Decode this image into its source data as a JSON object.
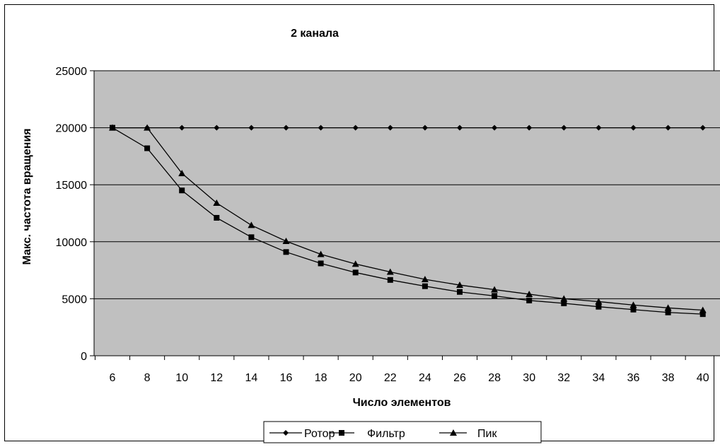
{
  "chart_data": {
    "type": "line",
    "title": "2 канала",
    "xlabel": "Число элементов",
    "ylabel": "Макс. частота вращения",
    "categories": [
      "6",
      "8",
      "10",
      "12",
      "14",
      "16",
      "18",
      "20",
      "22",
      "24",
      "26",
      "28",
      "30",
      "32",
      "34",
      "36",
      "38",
      "40"
    ],
    "ylim": [
      0,
      25000
    ],
    "yticks": [
      "0",
      "5000",
      "10000",
      "15000",
      "20000",
      "25000"
    ],
    "grid": true,
    "legend_position": "bottom",
    "plot_background": "#c0c0c0",
    "series": [
      {
        "name": "Ротор",
        "marker": "diamond",
        "color": "#000000",
        "values": [
          20000,
          20000,
          20000,
          20000,
          20000,
          20000,
          20000,
          20000,
          20000,
          20000,
          20000,
          20000,
          20000,
          20000,
          20000,
          20000,
          20000,
          20000
        ]
      },
      {
        "name": "Фильтр",
        "marker": "square",
        "color": "#000000",
        "values": [
          20000,
          18200,
          14500,
          12100,
          10400,
          9100,
          8100,
          7300,
          6650,
          6100,
          5600,
          5250,
          4850,
          4600,
          4300,
          4050,
          3800,
          3650
        ]
      },
      {
        "name": "Пик",
        "marker": "triangle",
        "color": "#000000",
        "values": [
          20000,
          20000,
          16000,
          13400,
          11450,
          10050,
          8900,
          8050,
          7350,
          6700,
          6200,
          5800,
          5400,
          5000,
          4750,
          4450,
          4200,
          4000
        ]
      }
    ]
  }
}
